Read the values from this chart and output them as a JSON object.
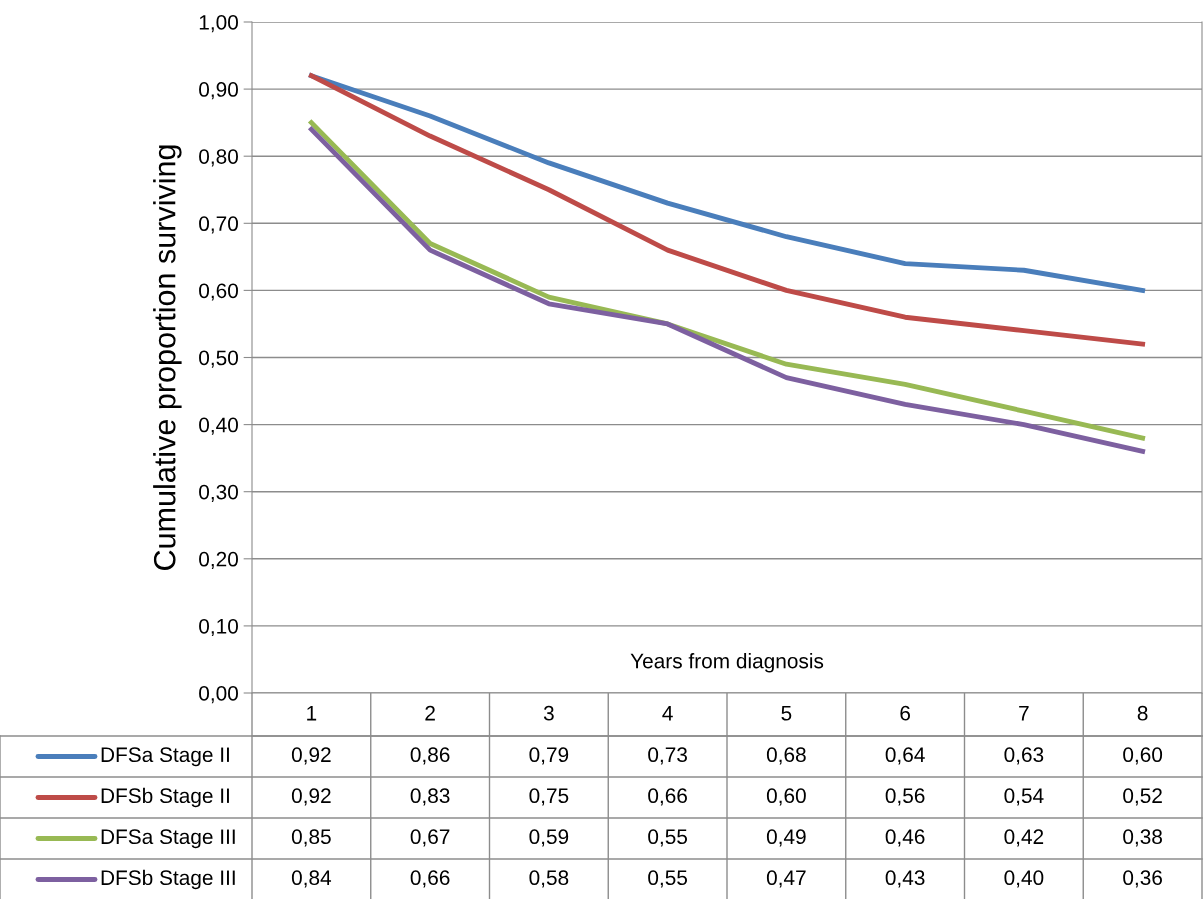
{
  "chart_data": {
    "type": "line",
    "xlabel": "Years from diagnosis",
    "ylabel": "Cumulative proportion surviving",
    "categories": [
      "1",
      "2",
      "3",
      "4",
      "5",
      "6",
      "7",
      "8"
    ],
    "series": [
      {
        "name": "DFSa Stage II",
        "color": "#4a7ebb",
        "values": [
          0.92,
          0.86,
          0.79,
          0.73,
          0.68,
          0.64,
          0.63,
          0.6
        ],
        "value_labels": [
          "0,92",
          "0,86",
          "0,79",
          "0,73",
          "0,68",
          "0,64",
          "0,63",
          "0,60"
        ]
      },
      {
        "name": "DFSb Stage II",
        "color": "#be4b48",
        "values": [
          0.92,
          0.83,
          0.75,
          0.66,
          0.6,
          0.56,
          0.54,
          0.52
        ],
        "value_labels": [
          "0,92",
          "0,83",
          "0,75",
          "0,66",
          "0,60",
          "0,56",
          "0,54",
          "0,52"
        ]
      },
      {
        "name": "DFSa Stage III",
        "color": "#98b954",
        "values": [
          0.85,
          0.67,
          0.59,
          0.55,
          0.49,
          0.46,
          0.42,
          0.38
        ],
        "value_labels": [
          "0,85",
          "0,67",
          "0,59",
          "0,55",
          "0,49",
          "0,46",
          "0,42",
          "0,38"
        ]
      },
      {
        "name": "DFSb Stage III",
        "color": "#7d60a0",
        "values": [
          0.84,
          0.66,
          0.58,
          0.55,
          0.47,
          0.43,
          0.4,
          0.36
        ],
        "value_labels": [
          "0,84",
          "0,66",
          "0,58",
          "0,55",
          "0,47",
          "0,43",
          "0,40",
          "0,36"
        ]
      }
    ],
    "ylim": [
      0,
      1
    ],
    "yticks": [
      {
        "value": 0,
        "label": "0,00"
      },
      {
        "value": 0.1,
        "label": "0,10"
      },
      {
        "value": 0.2,
        "label": "0,20"
      },
      {
        "value": 0.3,
        "label": "0,30"
      },
      {
        "value": 0.4,
        "label": "0,40"
      },
      {
        "value": 0.5,
        "label": "0,50"
      },
      {
        "value": 0.6,
        "label": "0,60"
      },
      {
        "value": 0.7,
        "label": "0,70"
      },
      {
        "value": 0.8,
        "label": "0,80"
      },
      {
        "value": 0.9,
        "label": "0,90"
      },
      {
        "value": 1,
        "label": "1,00"
      }
    ],
    "grid": "y",
    "marker": "none",
    "line_style": "solid",
    "legend": "bottom left"
  }
}
